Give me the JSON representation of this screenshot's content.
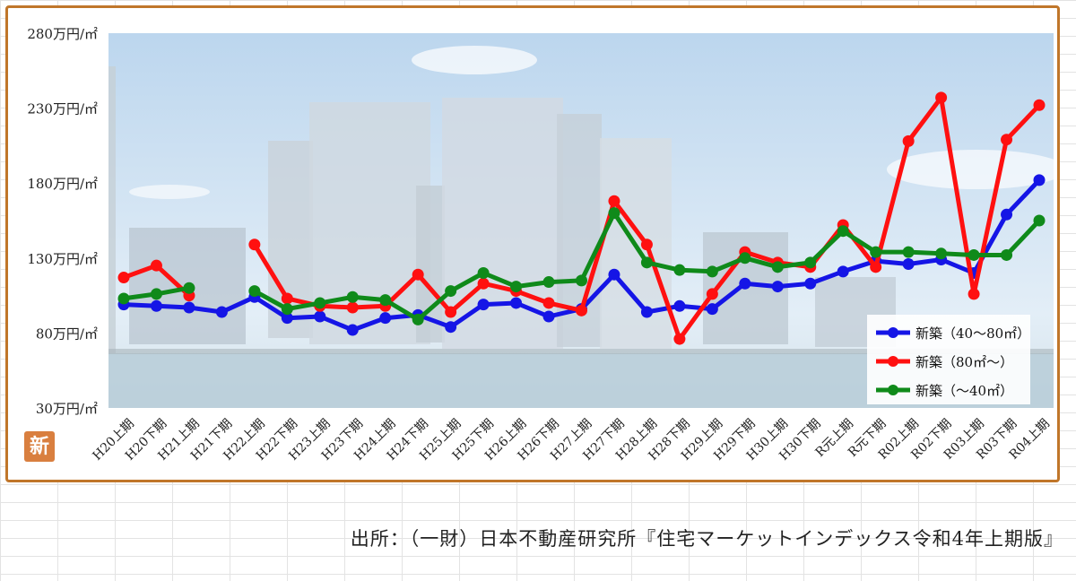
{
  "chart_data": {
    "type": "line",
    "categories": [
      "H20上期",
      "H20下期",
      "H21上期",
      "H21下期",
      "H22上期",
      "H22下期",
      "H23上期",
      "H23下期",
      "H24上期",
      "H24下期",
      "H25上期",
      "H25下期",
      "H26上期",
      "H26下期",
      "H27上期",
      "H27下期",
      "H28上期",
      "H28下期",
      "H29上期",
      "H29下期",
      "H30上期",
      "H30下期",
      "R元上期",
      "R元下期",
      "R02上期",
      "R02下期",
      "R03上期",
      "R03下期",
      "R04上期"
    ],
    "y_ticks": [
      30,
      80,
      130,
      180,
      230,
      280
    ],
    "y_tick_labels": [
      "30万円/㎡",
      "80万円/㎡",
      "130万円/㎡",
      "180万円/㎡",
      "230万円/㎡",
      "280万円/㎡"
    ],
    "ylim": [
      30,
      280
    ],
    "series": [
      {
        "name": "新築（40～80㎡）",
        "color": "#1515e6",
        "values": [
          99,
          98,
          97,
          94,
          104,
          90,
          91,
          82,
          90,
          92,
          84,
          99,
          100,
          91,
          96,
          119,
          94,
          98,
          96,
          113,
          111,
          113,
          121,
          128,
          126,
          129,
          120,
          159,
          182
        ]
      },
      {
        "name": "新築（80㎡～）",
        "color": "#ff1010",
        "values": [
          117,
          125,
          105,
          null,
          139,
          103,
          98,
          97,
          98,
          119,
          94,
          113,
          108,
          100,
          95,
          168,
          139,
          76,
          106,
          134,
          127,
          124,
          152,
          124,
          208,
          237,
          106,
          209,
          232
        ]
      },
      {
        "name": "新築（～40㎡）",
        "color": "#0f8a1a",
        "values": [
          103,
          106,
          110,
          null,
          108,
          96,
          100,
          104,
          102,
          89,
          108,
          120,
          111,
          114,
          115,
          160,
          127,
          122,
          121,
          130,
          124,
          127,
          148,
          134,
          134,
          133,
          132,
          132,
          155
        ]
      }
    ],
    "legend_position": "bottom-right",
    "grid": false
  },
  "badge_text": "新",
  "source_text": "出所：（一財）日本不動産研究所『住宅マーケットインデックス令和4年上期版』"
}
